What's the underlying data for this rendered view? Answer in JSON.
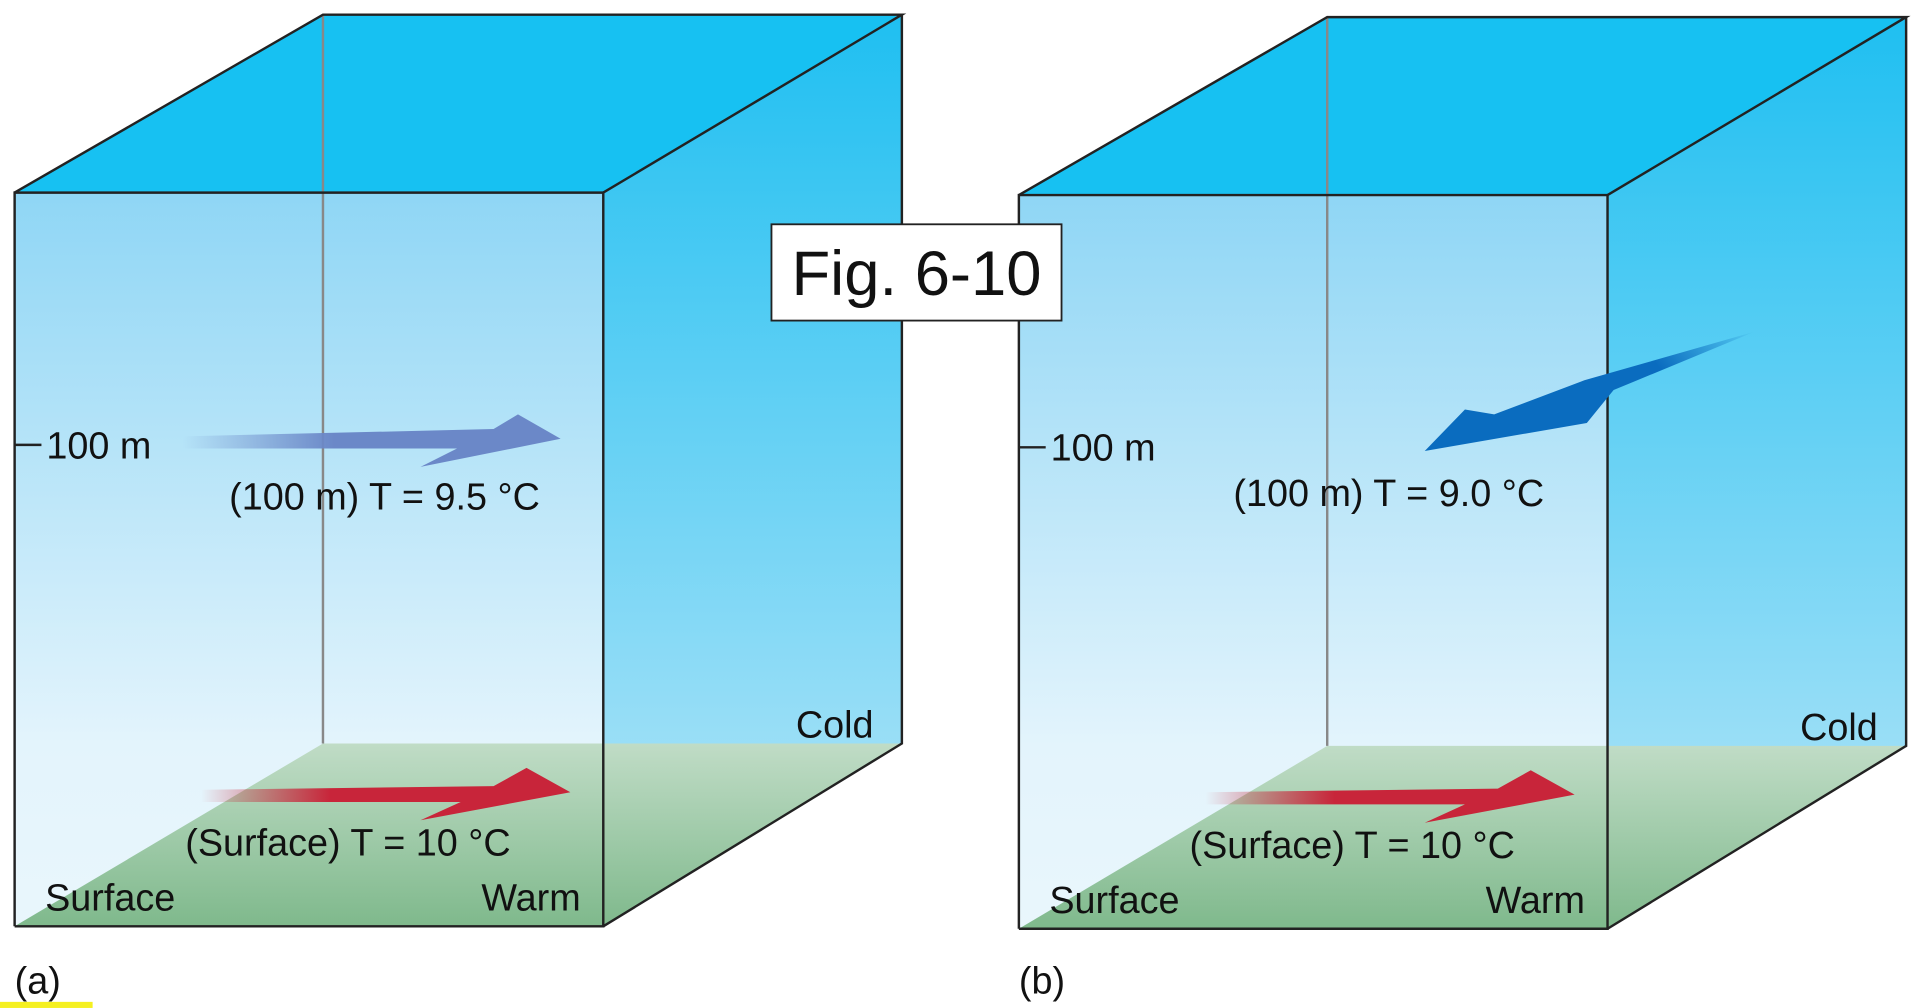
{
  "figure_label": "Fig. 6-10",
  "panels": [
    {
      "label": "(a)",
      "height_label": "100 m",
      "upper_label": "(100 m) T = 9.5 °C",
      "surface_label": "(Surface) T = 10 °C",
      "surface_corner": "Surface",
      "warm": "Warm",
      "cold": "Cold"
    },
    {
      "label": "(b)",
      "height_label": "100 m",
      "upper_label": "(100 m) T = 9.0 °C",
      "surface_label": "(Surface) T = 10 °C",
      "surface_corner": "Surface",
      "warm": "Warm",
      "cold": "Cold"
    }
  ]
}
